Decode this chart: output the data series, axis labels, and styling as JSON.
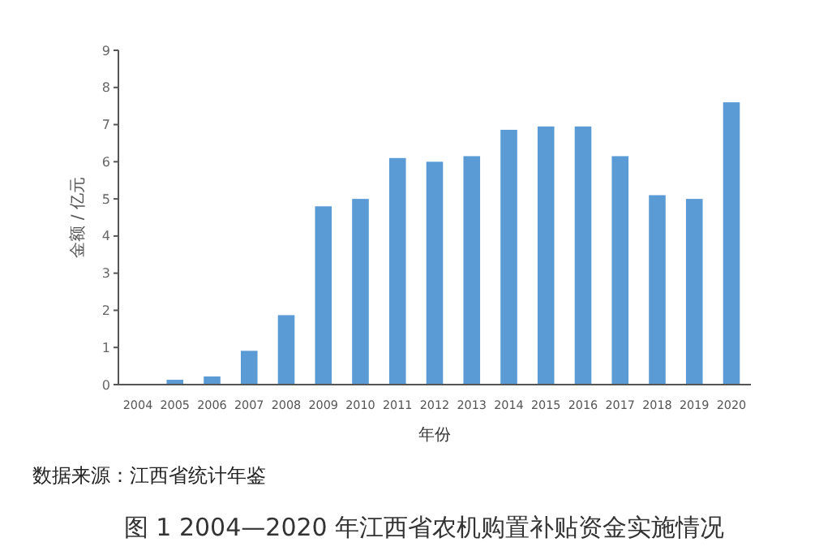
{
  "chart_data": {
    "type": "bar",
    "title": "图 1  2004—2020 年江西省农机购置补贴资金实施情况",
    "xlabel": "年份",
    "ylabel": "金额 / 亿元",
    "annotations": [
      "数据来源：江西省统计年鉴"
    ],
    "categories": [
      "2004",
      "2005",
      "2006",
      "2007",
      "2008",
      "2009",
      "2010",
      "2011",
      "2012",
      "2013",
      "2014",
      "2015",
      "2016",
      "2017",
      "2018",
      "2019",
      "2020"
    ],
    "values": [
      0,
      0.13,
      0.22,
      0.91,
      1.87,
      4.8,
      5.0,
      6.1,
      6.0,
      6.15,
      6.86,
      6.95,
      6.95,
      6.15,
      5.1,
      5.0,
      7.6
    ],
    "color": "#5b9bd5",
    "ylim": [
      0,
      9
    ],
    "yticks": [
      0,
      1,
      2,
      3,
      4,
      5,
      6,
      7,
      8,
      9
    ],
    "grid": false
  }
}
